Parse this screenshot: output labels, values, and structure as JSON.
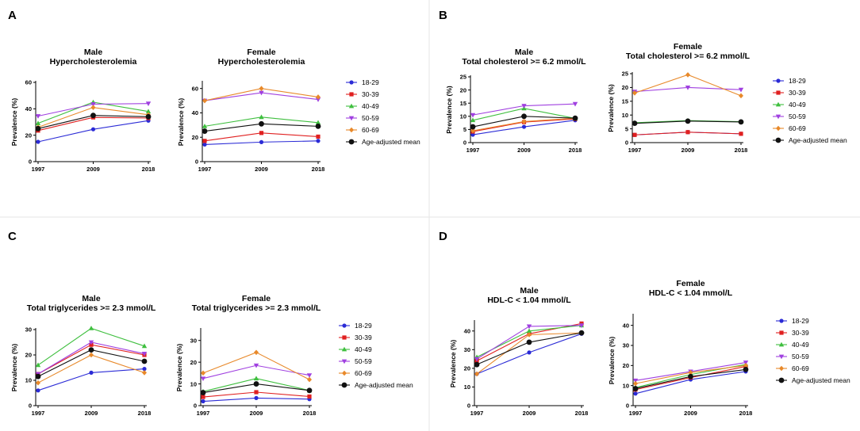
{
  "series_styles": [
    {
      "name": "18-29",
      "color": "#2b2bd6",
      "marker": "circle"
    },
    {
      "name": "30-39",
      "color": "#e02020",
      "marker": "square"
    },
    {
      "name": "40-49",
      "color": "#3fbf3f",
      "marker": "triangle-up"
    },
    {
      "name": "50-59",
      "color": "#a040e0",
      "marker": "triangle-down"
    },
    {
      "name": "60-69",
      "color": "#e8892a",
      "marker": "diamond"
    },
    {
      "name": "Age-adjusted mean",
      "color": "#111111",
      "marker": "circle-large"
    }
  ],
  "panels": [
    {
      "label": "A",
      "legend": [
        "18-29",
        "30-39",
        "40-49",
        "50-59",
        "60-69",
        "Age-adjusted mean"
      ]
    },
    {
      "label": "B",
      "legend": [
        "18-29",
        "30-39",
        "40-49",
        "50-59",
        "60-69",
        "Age-adjusted mean"
      ]
    },
    {
      "label": "C",
      "legend": [
        "18-29",
        "30-39",
        "40-49",
        "50-59",
        "60-69",
        "Age-adjusted mean"
      ]
    },
    {
      "label": "D",
      "legend": [
        "18-29",
        "30-39",
        "40-49",
        "50-59",
        "60-69",
        "Age-adjusted mean"
      ]
    }
  ],
  "chart_data": [
    {
      "type": "line",
      "panel": "A",
      "title": [
        "Male",
        "Hypercholesterolemia"
      ],
      "ylabel": "Prevalence (%)",
      "x": [
        "1997",
        "2009",
        "2018"
      ],
      "yticks": [
        0,
        20,
        40,
        60
      ],
      "ylim": [
        0,
        60
      ],
      "series": [
        {
          "name": "18-29",
          "values": [
            15,
            24.5,
            31
          ]
        },
        {
          "name": "30-39",
          "values": [
            23.5,
            33.5,
            33
          ]
        },
        {
          "name": "40-49",
          "values": [
            29,
            45,
            38
          ]
        },
        {
          "name": "50-59",
          "values": [
            34.5,
            43.5,
            44
          ]
        },
        {
          "name": "60-69",
          "values": [
            26,
            41,
            35.5
          ]
        },
        {
          "name": "Age-adjusted mean",
          "values": [
            25,
            35,
            34
          ]
        }
      ]
    },
    {
      "type": "line",
      "panel": "A",
      "title": [
        "Female",
        "Hypercholesterolemia"
      ],
      "ylabel": "Prevalence (%)",
      "x": [
        "1997",
        "2009",
        "2018"
      ],
      "yticks": [
        0,
        20,
        40,
        60
      ],
      "ylim": [
        0,
        65
      ],
      "series": [
        {
          "name": "18-29",
          "values": [
            14,
            16,
            17
          ]
        },
        {
          "name": "30-39",
          "values": [
            17,
            23.5,
            20.5
          ]
        },
        {
          "name": "40-49",
          "values": [
            29,
            36.5,
            32
          ]
        },
        {
          "name": "50-59",
          "values": [
            50,
            56.5,
            51
          ]
        },
        {
          "name": "60-69",
          "values": [
            50,
            60,
            53
          ]
        },
        {
          "name": "Age-adjusted mean",
          "values": [
            25,
            31,
            29
          ]
        }
      ]
    },
    {
      "type": "line",
      "panel": "B",
      "title": [
        "Male",
        "Total cholesterol >= 6.2 mmol/L"
      ],
      "ylabel": "Prevalence (%)",
      "x": [
        "1997",
        "2009",
        "2018"
      ],
      "yticks": [
        0,
        5,
        10,
        15,
        20,
        25
      ],
      "ylim": [
        0,
        25
      ],
      "series": [
        {
          "name": "18-29",
          "values": [
            3,
            6,
            8.5
          ]
        },
        {
          "name": "30-39",
          "values": [
            4.2,
            7.8,
            9
          ]
        },
        {
          "name": "40-49",
          "values": [
            8.5,
            13,
            9.2
          ]
        },
        {
          "name": "50-59",
          "values": [
            10.5,
            14,
            14.7
          ]
        },
        {
          "name": "60-69",
          "values": [
            4.5,
            8,
            9.3
          ]
        },
        {
          "name": "Age-adjusted mean",
          "values": [
            6,
            10,
            9.3
          ]
        }
      ]
    },
    {
      "type": "line",
      "panel": "B",
      "title": [
        "Female",
        "Total cholesterol >= 6.2 mmol/L"
      ],
      "ylabel": "Prevalence (%)",
      "x": [
        "1997",
        "2009",
        "2018"
      ],
      "yticks": [
        0,
        5,
        10,
        15,
        20,
        25
      ],
      "ylim": [
        0,
        25
      ],
      "series": [
        {
          "name": "18-29",
          "values": [
            2.8,
            3.8,
            3.2
          ]
        },
        {
          "name": "30-39",
          "values": [
            2.8,
            3.8,
            3.2
          ]
        },
        {
          "name": "40-49",
          "values": [
            7.2,
            8,
            7.6
          ]
        },
        {
          "name": "50-59",
          "values": [
            18.5,
            20,
            19.2
          ]
        },
        {
          "name": "60-69",
          "values": [
            18,
            24.6,
            17
          ]
        },
        {
          "name": "Age-adjusted mean",
          "values": [
            7,
            7.8,
            7.5
          ]
        }
      ]
    },
    {
      "type": "line",
      "panel": "C",
      "title": [
        "Male",
        "Total triglycerides >= 2.3 mmol/L"
      ],
      "ylabel": "Prevalence (%)",
      "x": [
        "1997",
        "2009",
        "2018"
      ],
      "yticks": [
        0,
        10,
        20,
        30
      ],
      "ylim": [
        0,
        30
      ],
      "series": [
        {
          "name": "18-29",
          "values": [
            6,
            13,
            14.5
          ]
        },
        {
          "name": "30-39",
          "values": [
            12.5,
            24,
            20
          ]
        },
        {
          "name": "40-49",
          "values": [
            16,
            30.5,
            23.5
          ]
        },
        {
          "name": "50-59",
          "values": [
            12.5,
            25,
            20.5
          ]
        },
        {
          "name": "60-69",
          "values": [
            9,
            20,
            13
          ]
        },
        {
          "name": "Age-adjusted mean",
          "values": [
            11.5,
            22,
            17.5
          ]
        }
      ]
    },
    {
      "type": "line",
      "panel": "C",
      "title": [
        "Female",
        "Total triglycerides >= 2.3 mmol/L"
      ],
      "ylabel": "Prevalence (%)",
      "x": [
        "1997",
        "2009",
        "2018"
      ],
      "yticks": [
        0,
        10,
        20,
        30
      ],
      "ylim": [
        0,
        35
      ],
      "series": [
        {
          "name": "18-29",
          "values": [
            2,
            3.5,
            3
          ]
        },
        {
          "name": "30-39",
          "values": [
            4,
            6.2,
            4.2
          ]
        },
        {
          "name": "40-49",
          "values": [
            6.5,
            12.5,
            7
          ]
        },
        {
          "name": "50-59",
          "values": [
            12.5,
            18.5,
            14
          ]
        },
        {
          "name": "60-69",
          "values": [
            15,
            24.5,
            12
          ]
        },
        {
          "name": "Age-adjusted mean",
          "values": [
            6,
            10,
            7
          ]
        }
      ]
    },
    {
      "type": "line",
      "panel": "D",
      "title": [
        "Male",
        "HDL-C < 1.04 mmol/L"
      ],
      "ylabel": "Prevalence (%)",
      "x": [
        "1997",
        "2009",
        "2018"
      ],
      "yticks": [
        0,
        10,
        20,
        30,
        40
      ],
      "ylim": [
        0,
        45
      ],
      "series": [
        {
          "name": "18-29",
          "values": [
            17,
            28.5,
            38.5
          ]
        },
        {
          "name": "30-39",
          "values": [
            24,
            38.5,
            44
          ]
        },
        {
          "name": "40-49",
          "values": [
            26,
            40,
            43
          ]
        },
        {
          "name": "50-59",
          "values": [
            25,
            42.5,
            43
          ]
        },
        {
          "name": "60-69",
          "values": [
            17,
            38,
            39
          ]
        },
        {
          "name": "Age-adjusted mean",
          "values": [
            22,
            34,
            39
          ]
        }
      ]
    },
    {
      "type": "line",
      "panel": "D",
      "title": [
        "Female",
        "HDL-C < 1.04 mmol/L"
      ],
      "ylabel": "Prevalence (%)",
      "x": [
        "1997",
        "2009",
        "2018"
      ],
      "yticks": [
        0,
        10,
        20,
        30,
        40
      ],
      "ylim": [
        0,
        45
      ],
      "series": [
        {
          "name": "18-29",
          "values": [
            6,
            13,
            17
          ]
        },
        {
          "name": "30-39",
          "values": [
            8,
            14,
            19.5
          ]
        },
        {
          "name": "40-49",
          "values": [
            9,
            15.5,
            20.5
          ]
        },
        {
          "name": "50-59",
          "values": [
            12.5,
            17,
            21.5
          ]
        },
        {
          "name": "60-69",
          "values": [
            11,
            16.5,
            20
          ]
        },
        {
          "name": "Age-adjusted mean",
          "values": [
            8.5,
            14.5,
            18
          ]
        }
      ]
    }
  ]
}
